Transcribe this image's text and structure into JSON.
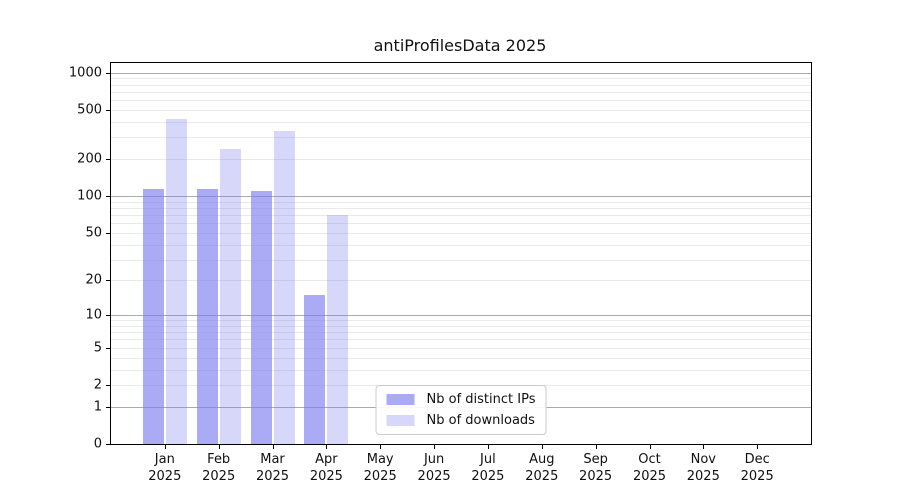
{
  "title": "antiProfilesData 2025",
  "chart_data": {
    "type": "bar",
    "title": "antiProfilesData 2025",
    "xlabel": "",
    "ylabel": "",
    "scale": "log10(1+y)",
    "grid": true,
    "legend_position": "lower center",
    "ylim": [
      0,
      1200
    ],
    "yticks": [
      0,
      1,
      2,
      5,
      10,
      20,
      50,
      100,
      200,
      500,
      1000
    ],
    "ytick_major": [
      1,
      10,
      100,
      1000
    ],
    "categories": [
      "Jan 2025",
      "Feb 2025",
      "Mar 2025",
      "Apr 2025",
      "May 2025",
      "Jun 2025",
      "Jul 2025",
      "Aug 2025",
      "Sep 2025",
      "Oct 2025",
      "Nov 2025",
      "Dec 2025"
    ],
    "series": [
      {
        "name": "Nb of distinct IPs",
        "values": [
          115,
          115,
          110,
          15,
          0,
          0,
          0,
          0,
          0,
          0,
          0,
          0
        ],
        "color_rgb": "124,124,240",
        "alpha": 0.65,
        "swatch_color": "#aaaaf5"
      },
      {
        "name": "Nb of downloads",
        "values": [
          420,
          240,
          340,
          70,
          0,
          0,
          0,
          0,
          0,
          0,
          0,
          0
        ],
        "color_rgb": "124,124,240",
        "alpha": 0.3,
        "swatch_color": "#d8d8fa"
      }
    ]
  },
  "colors": {
    "bar_base": "#7c7cf0",
    "grid_major": "#ababab",
    "grid_minor": "#e9e9e9",
    "spine": "#000000",
    "legend_border": "#cccccc",
    "background": "#ffffff"
  }
}
